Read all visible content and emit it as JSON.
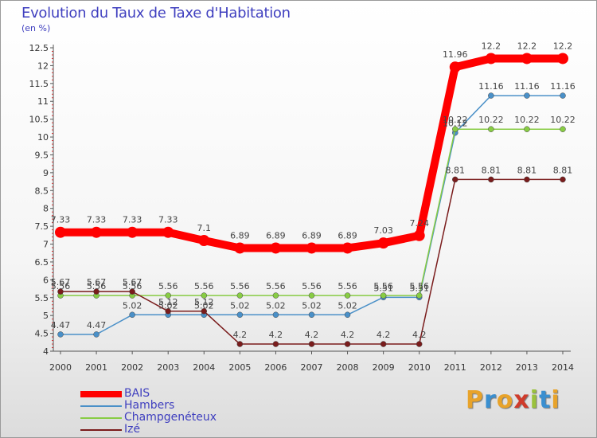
{
  "title": "Evolution du Taux de Taxe d'Habitation",
  "subtitle": "(en %)",
  "logo": {
    "letters": [
      "P",
      "r",
      "o",
      "x",
      "i",
      "t",
      "i"
    ],
    "colors": [
      "#e8a32a",
      "#3a8fd0",
      "#e8a32a",
      "#cf3b2b",
      "#9ac23c",
      "#3a8fd0",
      "#e8a32a"
    ]
  },
  "chart_data": {
    "type": "line",
    "title": "Evolution du Taux de Taxe d'Habitation",
    "ylabel": "(en %)",
    "xlabel": "",
    "x": [
      "2000",
      "2001",
      "2002",
      "2003",
      "2004",
      "2005",
      "2006",
      "2007",
      "2008",
      "2009",
      "2010",
      "2011",
      "2012",
      "2013",
      "2014"
    ],
    "ylim": [
      4,
      12.5
    ],
    "yticks": [
      "4",
      "4.5",
      "5",
      "5.5",
      "6",
      "6.5",
      "7",
      "7.5",
      "8",
      "8.5",
      "9",
      "9.5",
      "10",
      "10.5",
      "11",
      "11.5",
      "12",
      "12.5"
    ],
    "grid": false,
    "legend_position": "bottom-left",
    "series": [
      {
        "name": "BAIS",
        "color": "#ff0000",
        "thick": true,
        "values": [
          7.33,
          7.33,
          7.33,
          7.33,
          7.1,
          6.89,
          6.89,
          6.89,
          6.89,
          7.03,
          7.24,
          11.96,
          12.2,
          12.2,
          12.2
        ],
        "labels": [
          "7.33",
          "7.33",
          "7.33",
          "7.33",
          "7.1",
          "6.89",
          "6.89",
          "6.89",
          "6.89",
          "7.03",
          "7.24",
          "11.96",
          "12.2",
          "12.2",
          "12.2"
        ]
      },
      {
        "name": "Hambers",
        "color": "#4a90c8",
        "thick": false,
        "values": [
          4.47,
          4.47,
          5.02,
          5.02,
          5.02,
          5.02,
          5.02,
          5.02,
          5.02,
          5.51,
          5.51,
          10.12,
          11.16,
          11.16,
          11.16
        ],
        "labels": [
          "4.47",
          "4.47",
          "5.02",
          "5.02",
          "5.02",
          "5.02",
          "5.02",
          "5.02",
          "5.02",
          "5.51",
          "5.51",
          "10.12",
          "11.16",
          "11.16",
          "11.16"
        ]
      },
      {
        "name": "Champgenéteux",
        "color": "#88cc44",
        "thick": false,
        "values": [
          5.56,
          5.56,
          5.56,
          5.56,
          5.56,
          5.56,
          5.56,
          5.56,
          5.56,
          5.56,
          5.56,
          10.22,
          10.22,
          10.22,
          10.22
        ],
        "labels": [
          "5.56",
          "5.56",
          "5.56",
          "5.56",
          "5.56",
          "5.56",
          "5.56",
          "5.56",
          "5.56",
          "5.56",
          "5.56",
          "10.22",
          "10.22",
          "10.22",
          "10.22"
        ]
      },
      {
        "name": "Izé",
        "color": "#7a1c1c",
        "thick": false,
        "values": [
          5.67,
          5.67,
          5.67,
          5.12,
          5.12,
          4.2,
          4.2,
          4.2,
          4.2,
          4.2,
          4.2,
          8.81,
          8.81,
          8.81,
          8.81
        ],
        "labels": [
          "5.67",
          "5.67",
          "5.67",
          "5.12",
          "5.12",
          "4.2",
          "4.2",
          "4.2",
          "4.2",
          "4.2",
          "4.2",
          "8.81",
          "8.81",
          "8.81",
          "8.81"
        ]
      }
    ]
  }
}
